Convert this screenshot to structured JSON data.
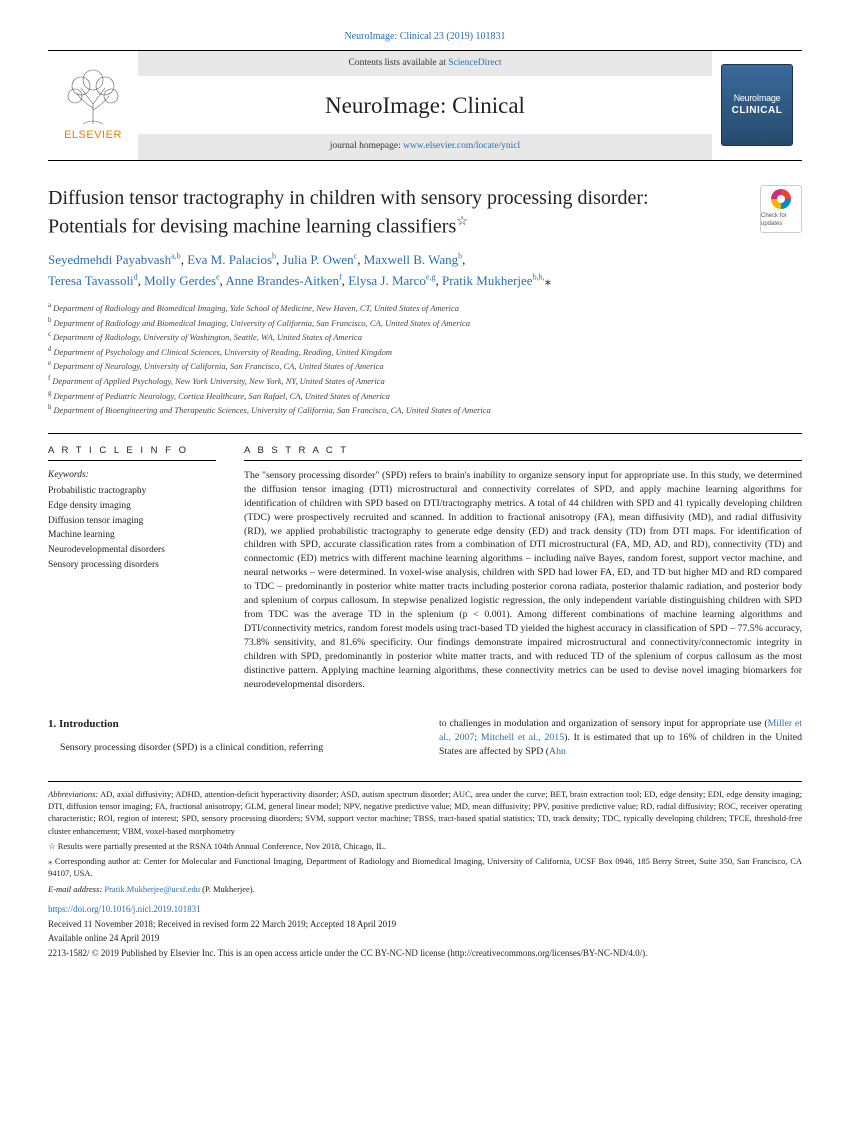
{
  "topbar": "NeuroImage: Clinical 23 (2019) 101831",
  "contents_prefix": "Contents lists available at ",
  "sciencedirect": "ScienceDirect",
  "journal_title": "NeuroImage: Clinical",
  "homepage_prefix": "journal homepage: ",
  "homepage_url": "www.elsevier.com/locate/ynicl",
  "elsevier": "ELSEVIER",
  "badge_t1": "NeuroImage",
  "badge_t2": "CLINICAL",
  "check_updates": "Check for updates",
  "title_l1": "Diffusion tensor tractography in children with sensory processing disorder:",
  "title_l2": "Potentials for devising machine learning classifiers",
  "star": "☆",
  "authors_html": "Seyedmehdi Payabvash<sup>a,b</sup><span class='sep'>, </span>Eva M. Palacios<sup>b</sup><span class='sep'>, </span>Julia P. Owen<sup>c</sup><span class='sep'>, </span>Maxwell B. Wang<sup>b</sup><span class='sep'>,</span><br>Teresa Tavassoli<sup>d</sup><span class='sep'>, </span>Molly Gerdes<sup>e</sup><span class='sep'>, </span>Anne Brandes-Aitken<sup>f</sup><span class='sep'>, </span>Elysa J. Marco<sup>e,g</sup><span class='sep'>, </span>Pratik Mukherjee<sup>b,h,</sup><span class='sep'>⁎</span>",
  "affils": [
    "Department of Radiology and Biomedical Imaging, Yale School of Medicine, New Haven, CT, United States of America",
    "Department of Radiology and Biomedical Imaging, University of California, San Francisco, CA, United States of America",
    "Department of Radiology, University of Washington, Seattle, WA, United States of America",
    "Department of Psychology and Clinical Sciences, University of Reading, Reading, United Kingdom",
    "Department of Neurology, University of California, San Francisco, CA, United States of America",
    "Department of Applied Psychology, New York University, New York, NY, United States of America",
    "Department of Pediatric Neurology, Cortica Healthcare, San Rafael, CA, United States of America",
    "Department of Bioengineering and Therapeutic Sciences, University of California, San Francisco, CA, United States of America"
  ],
  "affil_marks": [
    "a",
    "b",
    "c",
    "d",
    "e",
    "f",
    "g",
    "h"
  ],
  "article_info": "A R T I C L E  I N F O",
  "abstract_head": "A B S T R A C T",
  "kw_label": "Keywords:",
  "keywords": [
    "Probabilistic tractography",
    "Edge density imaging",
    "Diffusion tensor imaging",
    "Machine learning",
    "Neurodevelopmental disorders",
    "Sensory processing disorders"
  ],
  "abstract": "The \"sensory processing disorder\" (SPD) refers to brain's inability to organize sensory input for appropriate use. In this study, we determined the diffusion tensor imaging (DTI) microstructural and connectivity correlates of SPD, and apply machine learning algorithms for identification of children with SPD based on DTI/tractography metrics. A total of 44 children with SPD and 41 typically developing children (TDC) were prospectively recruited and scanned. In addition to fractional anisotropy (FA), mean diffusivity (MD), and radial diffusivity (RD), we applied probabilistic tractography to generate edge density (ED) and track density (TD) from DTI maps. For identification of children with SPD, accurate classification rates from a combination of DTI microstructural (FA, MD, AD, and RD), connectivity (TD) and connectomic (ED) metrics with different machine learning algorithms – including naïve Bayes, random forest, support vector machine, and neural networks – were determined. In voxel-wise analysis, children with SPD had lower FA, ED, and TD but higher MD and RD compared to TDC – predominantly in posterior white matter tracts including posterior corona radiata, posterior thalamic radiation, and posterior body and splenium of corpus callosum. In stepwise penalized logistic regression, the only independent variable distinguishing children with SPD from TDC was the average TD in the splenium (p < 0.001). Among different combinations of machine learning algorithms and DTI/connectivity metrics, random forest models using tract-based TD yielded the highest accuracy in classification of SPD – 77.5% accuracy, 73.8% sensitivity, and 81.6% specificity. Our findings demonstrate impaired microstructural and connectivity/connectomic integrity in children with SPD, predominantly in posterior white matter tracts, and with reduced TD of the splenium of corpus callosum as the most distinctive pattern. Applying machine learning algorithms, these connectivity metrics can be used to devise novel imaging biomarkers for neurodevelopmental disorders.",
  "intro_head": "1. Introduction",
  "intro_p1": "Sensory processing disorder (SPD) is a clinical condition, referring",
  "intro_p2a": "to challenges in modulation and organization of sensory input for appropriate use (",
  "intro_ref1": "Miller et al., 2007",
  "intro_sep": "; ",
  "intro_ref2": "Mitchell et al., 2015",
  "intro_p2b": "). It is estimated that up to 16% of children in the United States are affected by SPD (",
  "intro_ref3": "Ahn",
  "abbrev_label": "Abbreviations:",
  "abbrev_text": " AD, axial diffusivity; ADHD, attention-deficit hyperactivity disorder; ASD, autism spectrum disorder; AUC, area under the curve; BET, brain extraction tool; ED, edge density; EDI, edge density imaging; DTI, diffusion tensor imaging; FA, fractional anisotropy; GLM, general linear model; NPV, negative predictive value; MD, mean diffusivity; PPV, positive predictive value; RD, radial diffusivity; ROC, receiver operating characteristic; ROI, region of interest; SPD, sensory processing disorders; SVM, support vector machine; TBSS, tract-based spatial statistics; TD, track density; TDC, typically developing children; TFCE, threshold-free cluster enhancement; VBM, voxel-based morphometry",
  "note": "☆ Results were partially presented at the RSNA 104th Annual Conference, Nov 2018, Chicago, IL.",
  "corr": "⁎ Corresponding author at: Center for Molecular and Functional Imaging, Department of Radiology and Biomedical Imaging, University of California, UCSF Box 0946, 185 Berry Street, Suite 350, San Francisco, CA 94107, USA.",
  "email_label": "E-mail address:",
  "email": " Pratik.Mukherjee@ucsf.edu",
  "email_suffix": " (P. Mukherjee).",
  "doi": "https://doi.org/10.1016/j.nicl.2019.101831",
  "history": "Received 11 November 2018; Received in revised form 22 March 2019; Accepted 18 April 2019",
  "available": "Available online 24 April 2019",
  "copyright": "2213-1582/ © 2019 Published by Elsevier Inc. This is an open access article under the CC BY-NC-ND license (http://creativecommons.org/licenses/BY-NC-ND/4.0/)."
}
